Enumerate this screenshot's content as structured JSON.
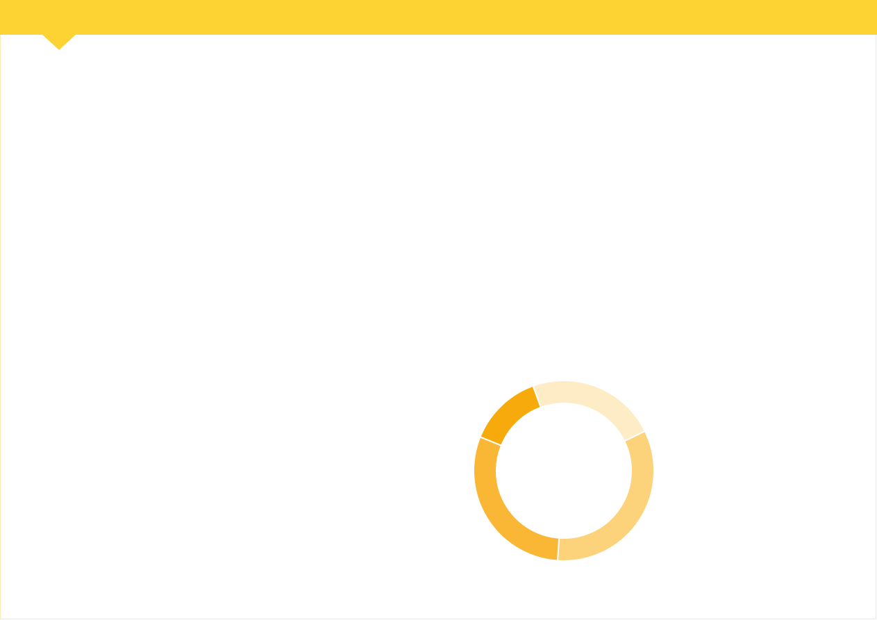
{
  "theme": {
    "banner_color": "#fdd334",
    "frame_border_color": "#fde9b6"
  },
  "chart_data": {
    "type": "pie",
    "donut": true,
    "start_angle_deg": -20,
    "slices": [
      {
        "value": 21,
        "color": "#fdecc6"
      },
      {
        "value": 30,
        "color": "#fcd27a"
      },
      {
        "value": 27,
        "color": "#f9b735"
      },
      {
        "value": 12,
        "color": "#f6aa0c"
      }
    ],
    "title": "",
    "legend": "none"
  }
}
